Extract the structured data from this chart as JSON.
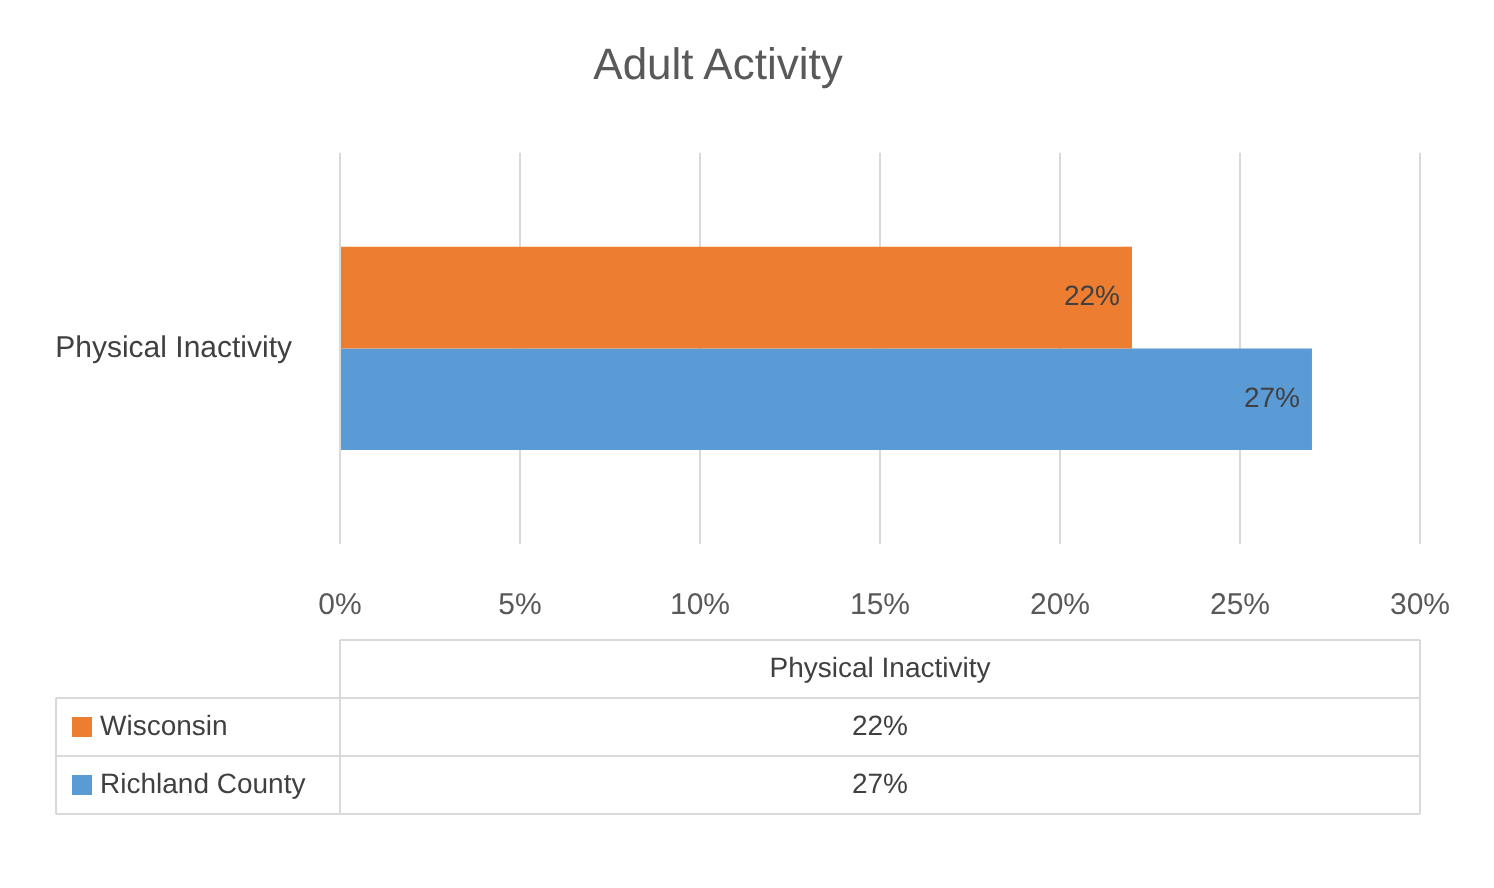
{
  "chart_data": {
    "type": "bar",
    "title": "Adult Activity",
    "orientation": "horizontal",
    "categories": [
      "Physical Inactivity"
    ],
    "series": [
      {
        "name": "Wisconsin",
        "color": "#ed7d31",
        "values": [
          22
        ],
        "value_labels": [
          "22%"
        ]
      },
      {
        "name": "Richland County",
        "color": "#5b9bd5",
        "values": [
          27
        ],
        "value_labels": [
          "27%"
        ]
      }
    ],
    "xlim": [
      0,
      30
    ],
    "xticks": [
      {
        "value": 0,
        "label": "0%"
      },
      {
        "value": 5,
        "label": "5%"
      },
      {
        "value": 10,
        "label": "10%"
      },
      {
        "value": 15,
        "label": "15%"
      },
      {
        "value": 20,
        "label": "20%"
      },
      {
        "value": 25,
        "label": "25%"
      },
      {
        "value": 30,
        "label": "30%"
      }
    ],
    "grid": "x",
    "legend": "bottom"
  }
}
